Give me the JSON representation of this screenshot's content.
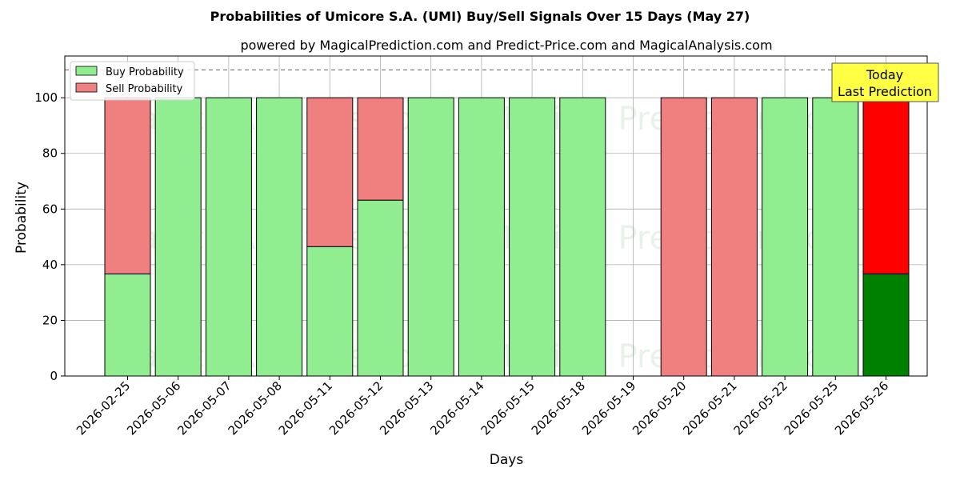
{
  "chart_data": {
    "type": "bar",
    "stacked": true,
    "title": "Probabilities of Umicore S.A. (UMI) Buy/Sell Signals Over 15 Days (May 27)",
    "subtitle": "powered by MagicalPrediction.com and Predict-Price.com and MagicalAnalysis.com",
    "xlabel": "Days",
    "ylabel": "Probability",
    "ylim": [
      0,
      115
    ],
    "yticks": [
      0,
      20,
      40,
      60,
      80,
      100
    ],
    "reference_line": 110,
    "grid": true,
    "legend_position": "top-left",
    "categories": [
      "2026-02-25",
      "2026-05-06",
      "2026-05-07",
      "2026-05-08",
      "2026-05-11",
      "2026-05-12",
      "2026-05-13",
      "2026-05-14",
      "2026-05-15",
      "2026-05-18",
      "2026-05-19",
      "2026-05-20",
      "2026-05-21",
      "2026-05-22",
      "2026-05-25",
      "2026-05-26"
    ],
    "series": [
      {
        "name": "Buy Probability",
        "color": "#90ee90",
        "values": [
          36.7,
          100,
          100,
          100,
          46.5,
          63.2,
          100,
          100,
          100,
          100,
          null,
          0,
          0,
          100,
          100,
          36.7
        ]
      },
      {
        "name": "Sell Probability",
        "color": "#f08080",
        "values": [
          63.3,
          0,
          0,
          0,
          53.5,
          36.8,
          0,
          0,
          0,
          0,
          null,
          100,
          100,
          0,
          0,
          63.3
        ]
      }
    ],
    "highlight": {
      "category": "2026-05-26",
      "buy_color": "#008000",
      "sell_color": "#ff0000"
    },
    "annotation": {
      "line1": "Today",
      "line2": "Last Prediction",
      "color": "#ffff44"
    },
    "watermarks": [
      "MagicalAnalysis.com",
      "Magical Prediction.com"
    ]
  }
}
